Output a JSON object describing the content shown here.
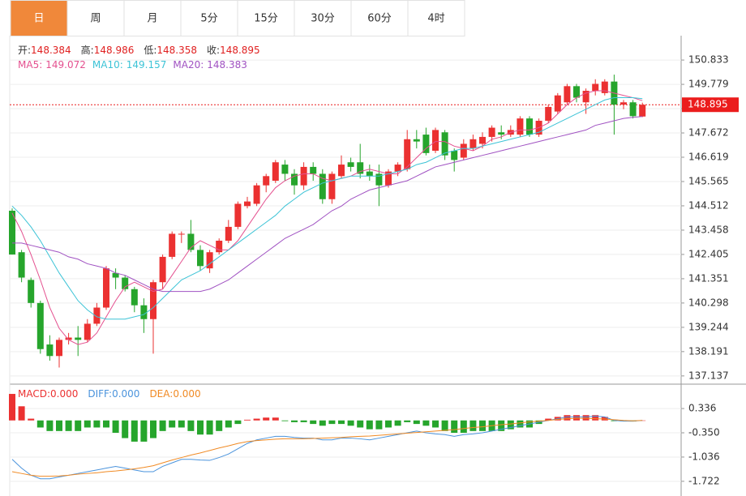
{
  "tabs": {
    "items": [
      "日",
      "周",
      "月",
      "5分",
      "15分",
      "30分",
      "60分",
      "4时"
    ],
    "active": 0
  },
  "chart_data": [
    {
      "type": "candlestick",
      "info": [
        {
          "label": "开:",
          "value": 148.384
        },
        {
          "label": "高:",
          "value": 148.986
        },
        {
          "label": "低:",
          "value": 148.358
        },
        {
          "label": "收:",
          "value": 148.895
        }
      ],
      "open": [
        144.3,
        142.5,
        141.3,
        140.3,
        138.5,
        138.0,
        138.7,
        138.8,
        138.7,
        139.4,
        140.1,
        141.6,
        141.4,
        140.9,
        140.2,
        139.6,
        141.2,
        142.3,
        143.3,
        143.3,
        142.6,
        141.8,
        142.5,
        143.0,
        143.6,
        144.5,
        144.6,
        145.4,
        145.6,
        146.3,
        145.9,
        145.4,
        146.2,
        145.9,
        144.8,
        145.8,
        146.4,
        146.4,
        146.0,
        145.9,
        145.4,
        146.0,
        146.1,
        147.4,
        147.6,
        146.9,
        147.7,
        146.9,
        146.6,
        147.0,
        147.2,
        147.5,
        147.7,
        147.6,
        147.6,
        148.3,
        147.6,
        148.2,
        148.6,
        149.0,
        149.7,
        149.0,
        149.5,
        149.4,
        149.9,
        148.9,
        149.0,
        148.384
      ],
      "high": [
        144.4,
        142.6,
        141.4,
        140.4,
        138.9,
        138.8,
        139.0,
        139.3,
        139.6,
        140.3,
        141.9,
        141.8,
        141.5,
        141.0,
        140.5,
        141.3,
        142.4,
        143.4,
        143.4,
        143.9,
        142.8,
        142.6,
        143.1,
        143.9,
        144.7,
        144.9,
        145.5,
        145.9,
        146.5,
        146.5,
        146.1,
        146.4,
        146.4,
        146.1,
        146.0,
        146.7,
        146.6,
        147.2,
        146.3,
        146.3,
        146.1,
        146.4,
        147.8,
        147.8,
        147.9,
        147.9,
        147.8,
        147.0,
        147.4,
        147.6,
        147.7,
        148.0,
        148.0,
        148.0,
        148.4,
        148.4,
        148.3,
        148.9,
        149.4,
        149.8,
        149.8,
        149.6,
        150.0,
        150.0,
        150.2,
        149.1,
        149.1,
        148.986
      ],
      "low": [
        142.4,
        141.2,
        140.1,
        138.1,
        137.8,
        137.5,
        138.5,
        138.0,
        138.6,
        139.3,
        140.0,
        140.9,
        140.8,
        139.9,
        139.0,
        138.1,
        140.9,
        142.2,
        142.9,
        142.5,
        141.7,
        141.6,
        142.4,
        142.9,
        143.5,
        144.4,
        144.5,
        145.1,
        145.5,
        145.6,
        145.0,
        145.2,
        145.6,
        144.6,
        144.6,
        145.7,
        146.0,
        145.7,
        145.6,
        144.5,
        145.3,
        145.8,
        146.0,
        147.0,
        146.7,
        146.8,
        146.5,
        146.0,
        146.5,
        146.9,
        147.0,
        147.3,
        147.4,
        147.5,
        147.5,
        147.5,
        147.5,
        148.1,
        148.5,
        148.9,
        149.0,
        148.5,
        149.3,
        149.3,
        147.6,
        148.7,
        148.3,
        148.358
      ],
      "close": [
        142.4,
        141.4,
        140.3,
        138.3,
        138.0,
        138.7,
        138.8,
        138.7,
        139.4,
        140.1,
        141.8,
        141.4,
        140.9,
        140.2,
        139.6,
        141.2,
        142.3,
        143.3,
        143.3,
        142.6,
        141.9,
        142.5,
        143.0,
        143.6,
        144.6,
        144.7,
        145.4,
        145.8,
        146.4,
        145.9,
        145.4,
        146.2,
        145.9,
        144.8,
        145.9,
        146.3,
        146.2,
        145.9,
        145.8,
        145.4,
        146.0,
        146.3,
        147.4,
        147.3,
        146.8,
        147.8,
        146.7,
        146.5,
        147.2,
        147.4,
        147.5,
        147.9,
        147.6,
        147.8,
        148.3,
        147.6,
        148.2,
        148.8,
        149.3,
        149.7,
        149.2,
        149.5,
        149.8,
        149.9,
        148.9,
        149.0,
        148.4,
        148.895
      ],
      "up_color": "#eb3131",
      "down_color": "#26a52c",
      "series": [
        {
          "name": "MA5:",
          "current": 149.072,
          "color": "#e4508f",
          "values": [
            144.2,
            143.4,
            142.4,
            141.3,
            140.1,
            139.2,
            138.7,
            138.5,
            138.6,
            139.0,
            139.7,
            140.4,
            141.0,
            141.2,
            141.0,
            140.8,
            140.9,
            141.5,
            142.1,
            142.7,
            143.0,
            142.8,
            142.6,
            142.6,
            143.0,
            143.6,
            144.2,
            144.8,
            145.3,
            145.6,
            145.8,
            145.9,
            145.9,
            145.7,
            145.6,
            145.7,
            145.8,
            146.0,
            146.1,
            146.0,
            145.9,
            145.9,
            146.2,
            146.6,
            147.0,
            147.3,
            147.3,
            147.1,
            147.0,
            146.9,
            147.1,
            147.4,
            147.5,
            147.7,
            147.8,
            147.8,
            147.9,
            148.1,
            148.5,
            148.9,
            149.2,
            149.4,
            149.5,
            149.5,
            149.4,
            149.3,
            149.2,
            149.072
          ]
        },
        {
          "name": "MA10:",
          "current": 149.157,
          "color": "#3cc3d6",
          "values": [
            144.5,
            144.1,
            143.6,
            143.0,
            142.3,
            141.6,
            141.0,
            140.4,
            140.0,
            139.7,
            139.6,
            139.6,
            139.6,
            139.7,
            139.8,
            140.1,
            140.5,
            140.9,
            141.3,
            141.5,
            141.7,
            142.0,
            142.3,
            142.6,
            142.9,
            143.2,
            143.5,
            143.8,
            144.1,
            144.5,
            144.8,
            145.1,
            145.3,
            145.5,
            145.6,
            145.7,
            145.8,
            145.8,
            145.8,
            145.8,
            145.9,
            146.0,
            146.1,
            146.3,
            146.4,
            146.6,
            146.8,
            146.9,
            147.0,
            147.0,
            147.1,
            147.2,
            147.3,
            147.4,
            147.5,
            147.6,
            147.7,
            147.9,
            148.1,
            148.3,
            148.5,
            148.7,
            148.9,
            149.1,
            149.2,
            149.2,
            149.2,
            149.157
          ]
        },
        {
          "name": "MA20:",
          "current": 148.383,
          "color": "#a052c2",
          "values": [
            142.9,
            142.9,
            142.8,
            142.7,
            142.6,
            142.5,
            142.3,
            142.2,
            142.0,
            141.9,
            141.8,
            141.6,
            141.5,
            141.3,
            141.1,
            140.9,
            140.8,
            140.8,
            140.8,
            140.8,
            140.8,
            140.9,
            141.1,
            141.3,
            141.6,
            141.9,
            142.2,
            142.5,
            142.8,
            143.1,
            143.3,
            143.5,
            143.7,
            144.0,
            144.3,
            144.5,
            144.8,
            145.0,
            145.2,
            145.3,
            145.4,
            145.5,
            145.6,
            145.8,
            146.0,
            146.2,
            146.3,
            146.4,
            146.5,
            146.6,
            146.7,
            146.8,
            146.9,
            147.0,
            147.1,
            147.2,
            147.3,
            147.4,
            147.5,
            147.6,
            147.7,
            147.8,
            148.0,
            148.1,
            148.2,
            148.3,
            148.35,
            148.383
          ]
        }
      ],
      "last_price": 148.895,
      "last_price_color": "#eb1c1c",
      "ylim": [
        136.78,
        151.89
      ],
      "yticks": [
        150.833,
        149.779,
        148.726,
        147.672,
        146.619,
        145.565,
        144.512,
        143.458,
        142.405,
        141.351,
        140.298,
        139.244,
        138.191,
        137.137
      ],
      "grid": true
    },
    {
      "type": "macd",
      "series": [
        {
          "name": "MACD:",
          "value": 0,
          "value_label": "0.000",
          "color": "#eb3131",
          "down_color": "#26a52c",
          "kind": "bar",
          "values": [
            0.75,
            0.4,
            0.05,
            -0.2,
            -0.3,
            -0.3,
            -0.3,
            -0.3,
            -0.2,
            -0.2,
            -0.2,
            -0.35,
            -0.5,
            -0.6,
            -0.6,
            -0.5,
            -0.3,
            -0.2,
            -0.2,
            -0.3,
            -0.4,
            -0.4,
            -0.3,
            -0.2,
            -0.1,
            0.02,
            0.05,
            0.08,
            0.08,
            -0.02,
            -0.05,
            -0.05,
            -0.1,
            -0.15,
            -0.1,
            -0.1,
            -0.15,
            -0.2,
            -0.25,
            -0.25,
            -0.2,
            -0.15,
            -0.05,
            -0.1,
            -0.15,
            -0.2,
            -0.3,
            -0.35,
            -0.35,
            -0.3,
            -0.3,
            -0.3,
            -0.3,
            -0.25,
            -0.2,
            -0.2,
            -0.1,
            0.05,
            0.1,
            0.15,
            0.15,
            0.15,
            0.15,
            0.1,
            -0.02,
            -0.02,
            -0.03,
            0
          ]
        },
        {
          "name": "DIFF:",
          "value": 0,
          "value_label": "0.000",
          "color": "#4a93dc",
          "kind": "line",
          "values": [
            -1.1,
            -1.35,
            -1.55,
            -1.65,
            -1.65,
            -1.6,
            -1.55,
            -1.5,
            -1.45,
            -1.4,
            -1.35,
            -1.3,
            -1.35,
            -1.4,
            -1.45,
            -1.45,
            -1.3,
            -1.2,
            -1.1,
            -1.1,
            -1.12,
            -1.13,
            -1.05,
            -0.95,
            -0.8,
            -0.65,
            -0.55,
            -0.5,
            -0.45,
            -0.45,
            -0.48,
            -0.5,
            -0.5,
            -0.55,
            -0.55,
            -0.5,
            -0.5,
            -0.52,
            -0.55,
            -0.5,
            -0.45,
            -0.4,
            -0.35,
            -0.3,
            -0.35,
            -0.38,
            -0.4,
            -0.45,
            -0.4,
            -0.38,
            -0.35,
            -0.3,
            -0.25,
            -0.2,
            -0.15,
            -0.1,
            -0.05,
            0,
            0.05,
            0.1,
            0.1,
            0.1,
            0.12,
            0.1,
            0,
            -0.02,
            -0.02,
            0
          ]
        },
        {
          "name": "DEA:",
          "value": 0,
          "value_label": "0.000",
          "color": "#f08a24",
          "kind": "line",
          "values": [
            -1.45,
            -1.5,
            -1.55,
            -1.58,
            -1.58,
            -1.57,
            -1.55,
            -1.52,
            -1.5,
            -1.48,
            -1.45,
            -1.43,
            -1.4,
            -1.37,
            -1.33,
            -1.28,
            -1.2,
            -1.12,
            -1.05,
            -0.98,
            -0.92,
            -0.85,
            -0.78,
            -0.72,
            -0.65,
            -0.6,
            -0.57,
            -0.55,
            -0.53,
            -0.52,
            -0.52,
            -0.52,
            -0.51,
            -0.5,
            -0.49,
            -0.48,
            -0.46,
            -0.45,
            -0.44,
            -0.42,
            -0.4,
            -0.38,
            -0.36,
            -0.34,
            -0.32,
            -0.3,
            -0.28,
            -0.26,
            -0.23,
            -0.2,
            -0.18,
            -0.15,
            -0.12,
            -0.1,
            -0.07,
            -0.04,
            -0.02,
            0,
            0.03,
            0.05,
            0.06,
            0.06,
            0.05,
            0.04,
            0.02,
            0,
            -0.01,
            0
          ]
        }
      ],
      "ylim": [
        -2.0,
        0.98
      ],
      "yticks": [
        0.336,
        {
          "value": -0.35,
          "label": "-0.350"
        },
        -1.036,
        -1.722
      ],
      "grid": true
    }
  ]
}
